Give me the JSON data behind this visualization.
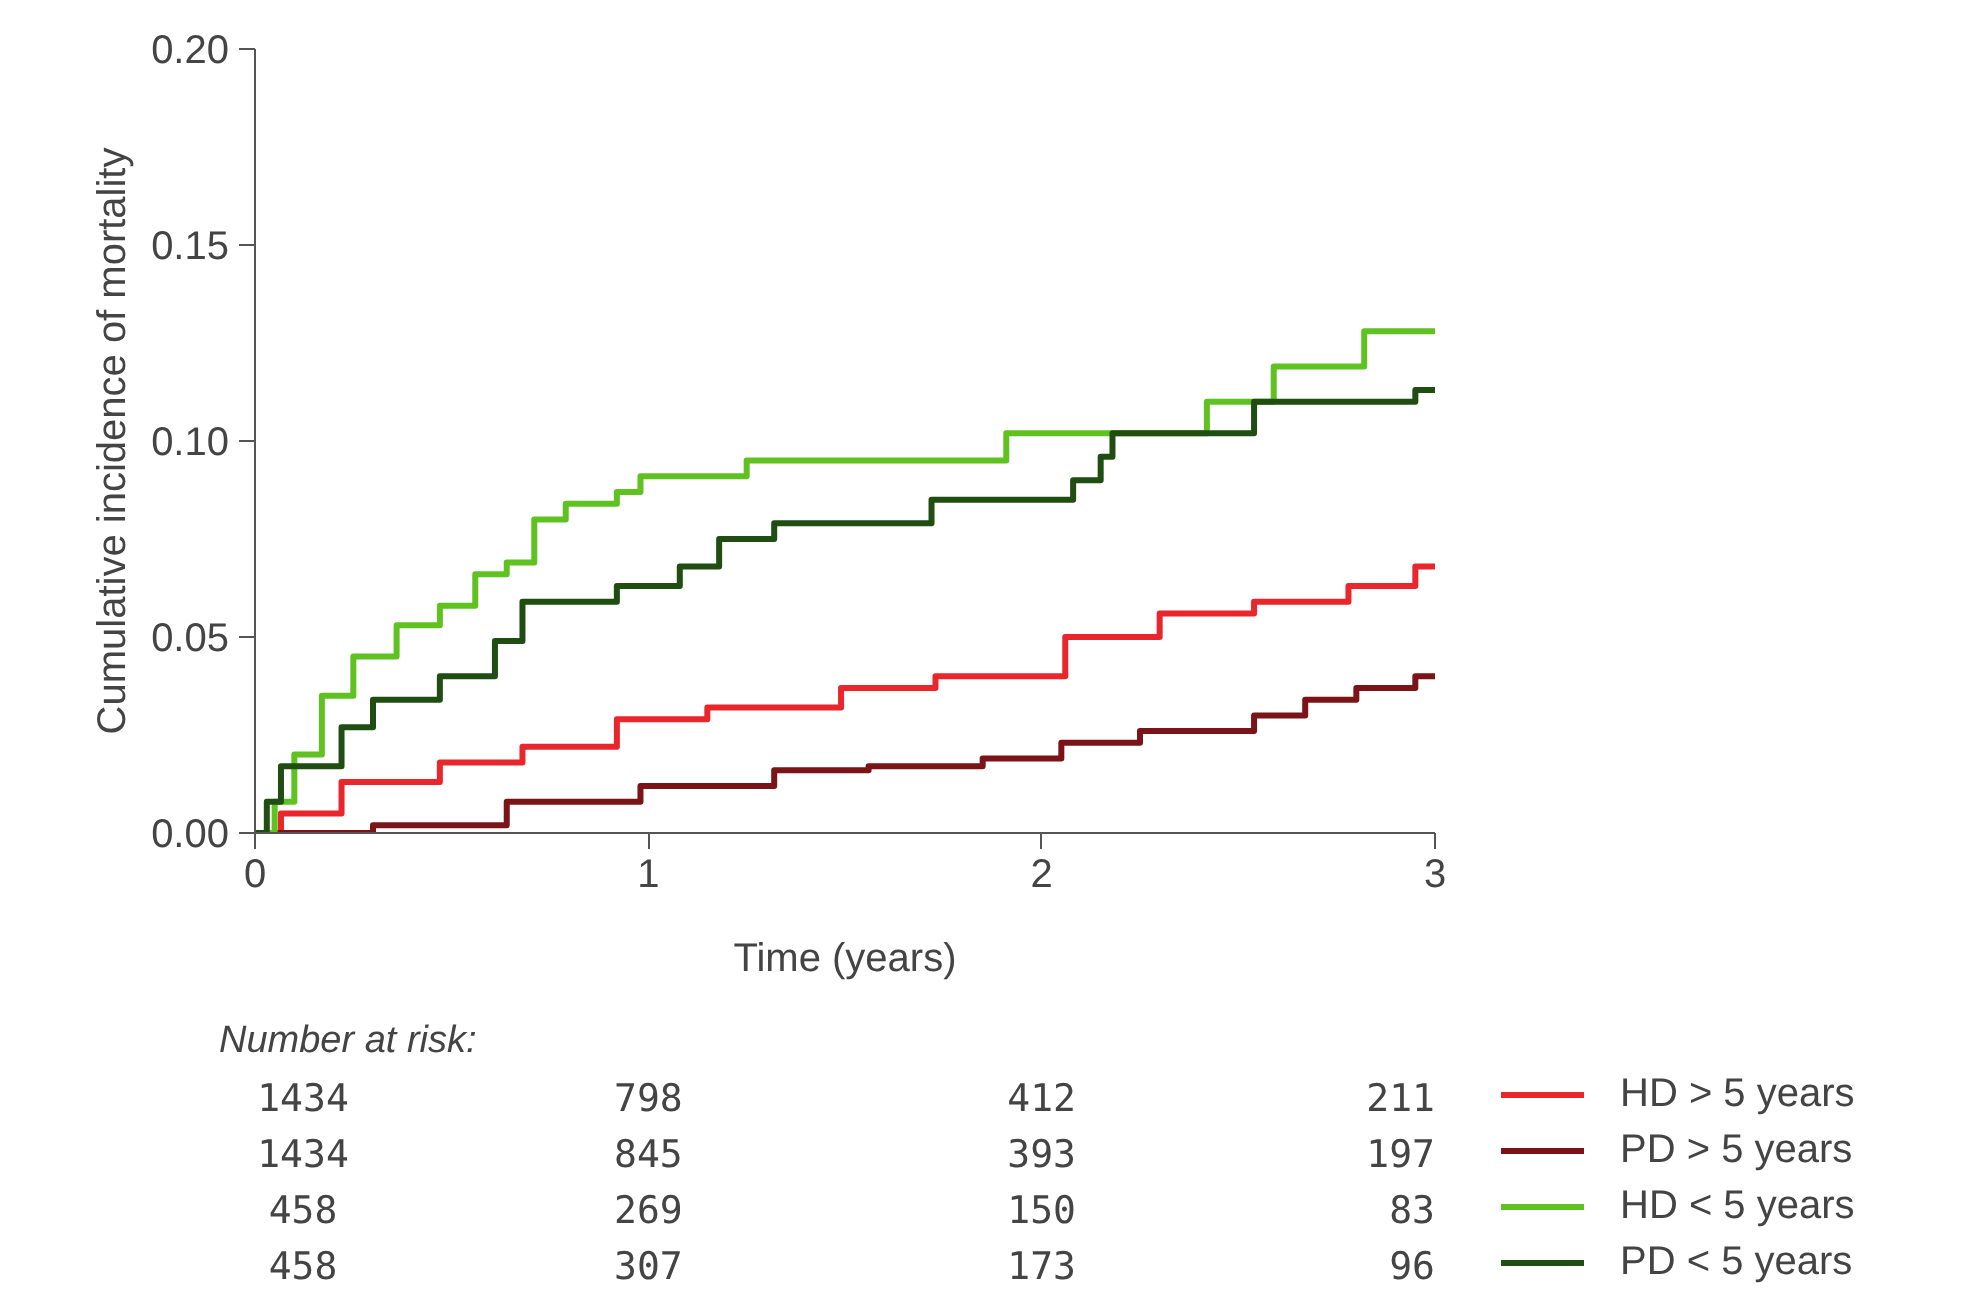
{
  "chart_data": {
    "type": "step",
    "xlabel": "Time (years)",
    "ylabel": "Cumulative incidence of mortality",
    "xlim": [
      0,
      3
    ],
    "ylim": [
      0,
      0.2
    ],
    "xticks": [
      0,
      1,
      2,
      3
    ],
    "yticks": [
      {
        "value": 0,
        "label": "0.00"
      },
      {
        "value": 0.05,
        "label": "0.05"
      },
      {
        "value": 0.1,
        "label": "0.10"
      },
      {
        "value": 0.15,
        "label": "0.15"
      },
      {
        "value": 0.2,
        "label": "0.20"
      }
    ],
    "grid": false,
    "legend": "bottom right",
    "line_style": "solid",
    "marker": "none",
    "series": [
      {
        "name": "HD > 5 years",
        "color": "#e8262b",
        "x": [
          0,
          0.066,
          0.22,
          0.47,
          0.68,
          0.92,
          1.15,
          1.49,
          1.73,
          2.06,
          2.3,
          2.54,
          2.78,
          2.95,
          3.0
        ],
        "values": [
          0,
          0.005,
          0.013,
          0.018,
          0.022,
          0.029,
          0.032,
          0.037,
          0.04,
          0.05,
          0.056,
          0.059,
          0.063,
          0.068,
          0.068
        ]
      },
      {
        "name": "PD > 5 years",
        "color": "#7b1416",
        "x": [
          0,
          0.3,
          0.64,
          0.98,
          1.32,
          1.56,
          1.85,
          2.05,
          2.25,
          2.54,
          2.67,
          2.8,
          2.95,
          3.0
        ],
        "values": [
          0,
          0.002,
          0.008,
          0.012,
          0.016,
          0.017,
          0.019,
          0.023,
          0.026,
          0.03,
          0.034,
          0.037,
          0.04,
          0.04
        ]
      },
      {
        "name": "HD < 5 years",
        "color": "#5fc220",
        "x": [
          0,
          0.05,
          0.1,
          0.17,
          0.25,
          0.36,
          0.47,
          0.56,
          0.64,
          0.71,
          0.79,
          0.92,
          0.98,
          1.25,
          1.91,
          2.42,
          2.59,
          2.82,
          3.0
        ],
        "values": [
          0,
          0.008,
          0.02,
          0.035,
          0.045,
          0.053,
          0.058,
          0.066,
          0.069,
          0.08,
          0.084,
          0.087,
          0.091,
          0.095,
          0.102,
          0.11,
          0.119,
          0.128,
          0.128
        ]
      },
      {
        "name": "PD < 5 years",
        "color": "#1f4d12",
        "x": [
          0,
          0.03,
          0.066,
          0.22,
          0.3,
          0.47,
          0.61,
          0.68,
          0.92,
          1.08,
          1.18,
          1.32,
          1.72,
          2.08,
          2.15,
          2.18,
          2.54,
          2.95,
          3.0
        ],
        "values": [
          0,
          0.008,
          0.017,
          0.027,
          0.034,
          0.04,
          0.049,
          0.059,
          0.063,
          0.068,
          0.075,
          0.079,
          0.085,
          0.09,
          0.096,
          0.102,
          0.11,
          0.113,
          0.113
        ]
      }
    ],
    "annotations": [
      "Number at risk:",
      "1434",
      "798",
      "412",
      "211",
      "1434",
      "845",
      "393",
      "197",
      "458",
      "269",
      "150",
      "83",
      "458",
      "307",
      "173",
      "96"
    ]
  }
}
